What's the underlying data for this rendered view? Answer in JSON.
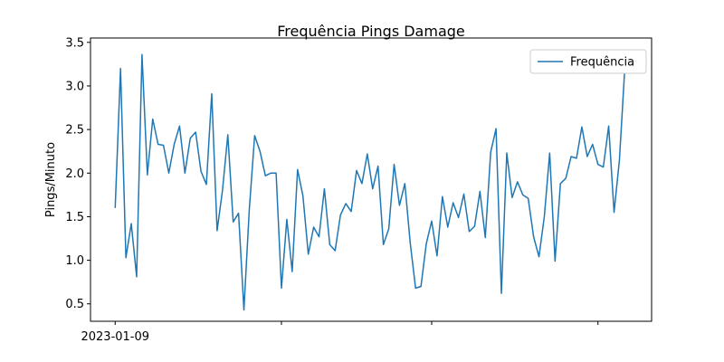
{
  "chart_data": {
    "type": "line",
    "title": "Frequência Pings Damage",
    "xlabel": "",
    "ylabel": "Pings/Minuto",
    "x_tick_labels": [
      "2023-01-09",
      "",
      "",
      ""
    ],
    "x_tick_index": [
      0,
      31,
      59,
      90
    ],
    "y_ticks": [
      0.5,
      1.0,
      1.5,
      2.0,
      2.5,
      3.0,
      3.5
    ],
    "y_tick_labels": [
      "0.5",
      "1.0",
      "1.5",
      "2.0",
      "2.5",
      "3.0",
      "3.5"
    ],
    "ylim": [
      0.3,
      3.55
    ],
    "xlim_index": [
      -4.6,
      100.0
    ],
    "grid": false,
    "legend_position": "top-right",
    "series": [
      {
        "name": "Frequência",
        "color": "#1f77b4",
        "values": [
          1.6,
          3.2,
          1.03,
          1.42,
          0.81,
          3.36,
          1.98,
          2.62,
          2.33,
          2.32,
          2.0,
          2.33,
          2.54,
          2.0,
          2.4,
          2.47,
          2.02,
          1.87,
          2.91,
          1.34,
          1.8,
          2.44,
          1.44,
          1.54,
          0.43,
          1.58,
          2.43,
          2.25,
          1.97,
          2.0,
          2.0,
          0.68,
          1.47,
          0.87,
          2.04,
          1.74,
          1.07,
          1.38,
          1.27,
          1.82,
          1.18,
          1.11,
          1.52,
          1.65,
          1.56,
          2.03,
          1.88,
          2.22,
          1.82,
          2.08,
          1.18,
          1.36,
          2.1,
          1.63,
          1.88,
          1.2,
          0.68,
          0.7,
          1.19,
          1.45,
          1.05,
          1.73,
          1.38,
          1.66,
          1.49,
          1.76,
          1.33,
          1.39,
          1.79,
          1.26,
          2.24,
          2.51,
          0.62,
          2.23,
          1.72,
          1.9,
          1.75,
          1.71,
          1.27,
          1.04,
          1.5,
          2.23,
          0.99,
          1.88,
          1.94,
          2.19,
          2.17,
          2.53,
          2.19,
          2.33,
          2.1,
          2.07,
          2.54,
          1.55,
          2.15,
          3.2
        ]
      }
    ]
  }
}
